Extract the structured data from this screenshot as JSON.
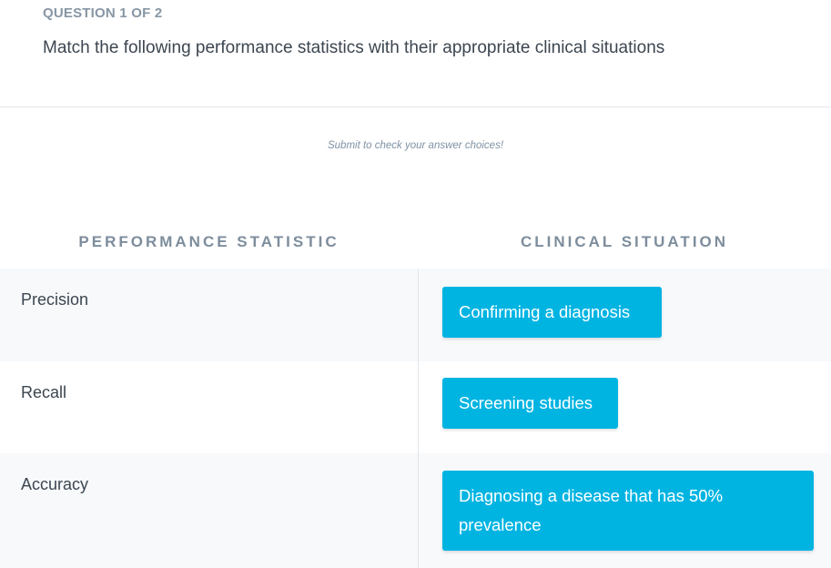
{
  "question": {
    "counter": "QUESTION 1 OF 2",
    "prompt": "Match the following performance statistics with their appropriate clinical situations"
  },
  "hint": "Submit to check your answer choices!",
  "columns": {
    "left_header": "PERFORMANCE STATISTIC",
    "right_header": "CLINICAL SITUATION"
  },
  "rows": [
    {
      "statistic": "Precision",
      "situation": "Confirming a diagnosis"
    },
    {
      "statistic": "Recall",
      "situation": "Screening studies"
    },
    {
      "statistic": "Accuracy",
      "situation": "Diagnosing a disease that has 50% prevalence"
    }
  ],
  "colors": {
    "chip": "#00b4e2",
    "shaded_row": "#f7f9fb",
    "header_text": "#7d8d9c"
  }
}
